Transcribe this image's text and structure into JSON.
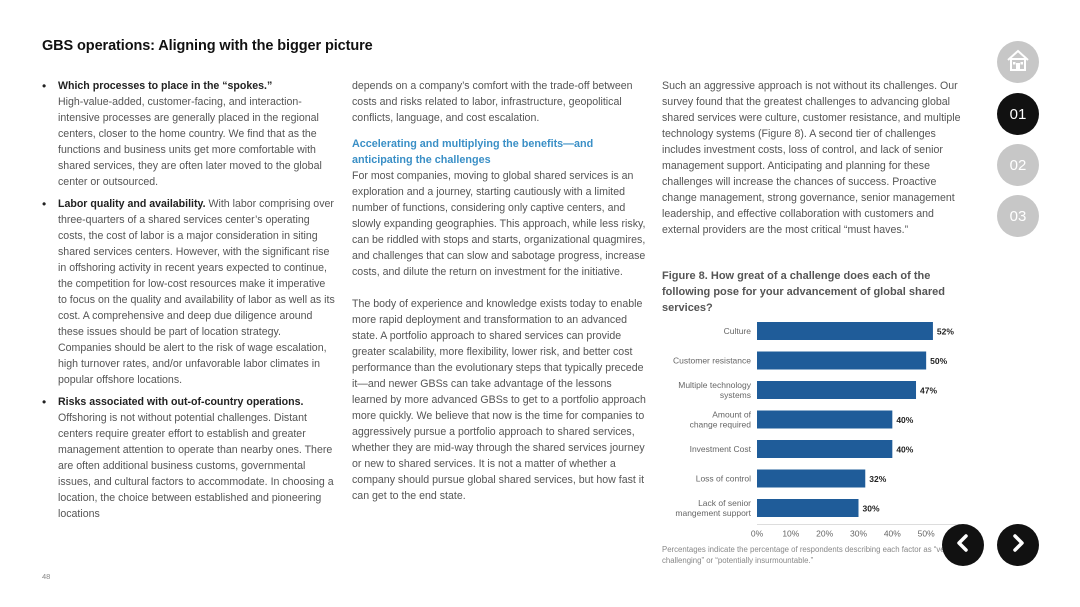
{
  "page_title": "GBS operations: Aligning with the bigger picture",
  "col1": {
    "bullets": [
      {
        "head": "Which processes to place in the “spokes.”",
        "text": "High-value-added, customer-facing, and interaction-intensive processes are generally placed in the regional centers, closer to the home country. We find that as the functions and business units get more comfortable with shared services, they are often later moved to the global center or outsourced."
      },
      {
        "head": "Labor quality and availability.",
        "text": " With labor comprising over three-quarters of a shared services center’s operating costs, the cost of labor is a major consideration in siting shared services centers. However, with the significant rise in offshoring activity in recent years expected to continue, the competition for low-cost resources make it imperative to focus on the quality and availability of labor as well as its cost. A comprehensive and deep due diligence around these issues should be part of location strategy. Companies should be alert to the risk of wage escalation, high turnover rates, and/or unfavorable labor climates in popular offshore locations."
      },
      {
        "head": "Risks associated with out-of-country operations.",
        "text": "Offshoring is not without potential challenges. Distant centers require greater effort to establish and greater management attention to operate than nearby ones. There are often additional business customs, governmental issues, and cultural factors to accommodate. In choosing a location, the choice between established and pioneering locations"
      }
    ]
  },
  "col2": {
    "p1": "depends on a company’s comfort with the trade-off between costs and risks related to labor, infrastructure, geopolitical conflicts, language, and cost escalation.",
    "subhead": "Accelerating and multiplying the benefits—and anticipating the challenges",
    "p2": "For most companies, moving to global shared services is an exploration and a journey, starting cautiously with a limited number of functions, considering only captive centers, and slowly expanding geographies. This approach, while less risky, can be riddled with stops and starts, organizational quagmires, and challenges that can slow and sabotage progress, increase costs, and dilute the return on investment for the initiative.",
    "p3": "The body of experience and knowledge exists today to enable more rapid deployment and transformation to an advanced state. A portfolio approach to shared services can provide greater scalability, more flexibility, lower risk, and better cost performance than the evolutionary steps that typically precede it—and newer GBSs can take advantage of the lessons learned by more advanced GBSs to get to a portfolio approach more quickly. We believe that now is the time for companies to aggressively pursue a portfolio approach to shared services, whether they are mid-way through the shared services journey or new to shared services. It is not a matter of whether a company should pursue global shared services, but how fast it can get to the end state."
  },
  "col3": {
    "p1": "Such an aggressive approach is not without its challenges. Our survey found that the greatest challenges to advancing global shared services were culture, customer resistance, and multiple technology systems (Figure 8). A second tier of challenges includes investment costs, loss of control, and lack of senior management support. Anticipating and planning for these challenges will increase the chances of success. Proactive change management, strong governance, senior management leadership, and effective collaboration with customers and external providers are the most critical “must haves.”"
  },
  "figure": {
    "title": "Figure 8. How great of a challenge does each of the following pose for your advancement of global shared services?",
    "footnote": "Percentages indicate the percentage of respondents describing each factor as “very challenging” or “potentially insurmountable.”"
  },
  "chart_data": {
    "type": "bar",
    "orientation": "horizontal",
    "categories": [
      [
        "Culture"
      ],
      [
        "Customer resistance"
      ],
      [
        "Multiple technology",
        "systems"
      ],
      [
        "Amount of",
        "change required"
      ],
      [
        "Investment Cost"
      ],
      [
        "Loss of control"
      ],
      [
        "Lack of senior",
        "mangement support"
      ]
    ],
    "values": [
      52,
      50,
      47,
      40,
      40,
      32,
      30
    ],
    "value_labels": [
      "52%",
      "50%",
      "47%",
      "40%",
      "40%",
      "32%",
      "30%"
    ],
    "xticks": [
      "0%",
      "10%",
      "20%",
      "30%",
      "40%",
      "50%"
    ],
    "xlim": [
      0,
      60
    ],
    "bar_color": "#1f5c99",
    "grid": false
  },
  "nav": {
    "home_icon": "home-icon",
    "sections": [
      "01",
      "02",
      "03"
    ],
    "active_section": "01"
  },
  "page_number": "48"
}
